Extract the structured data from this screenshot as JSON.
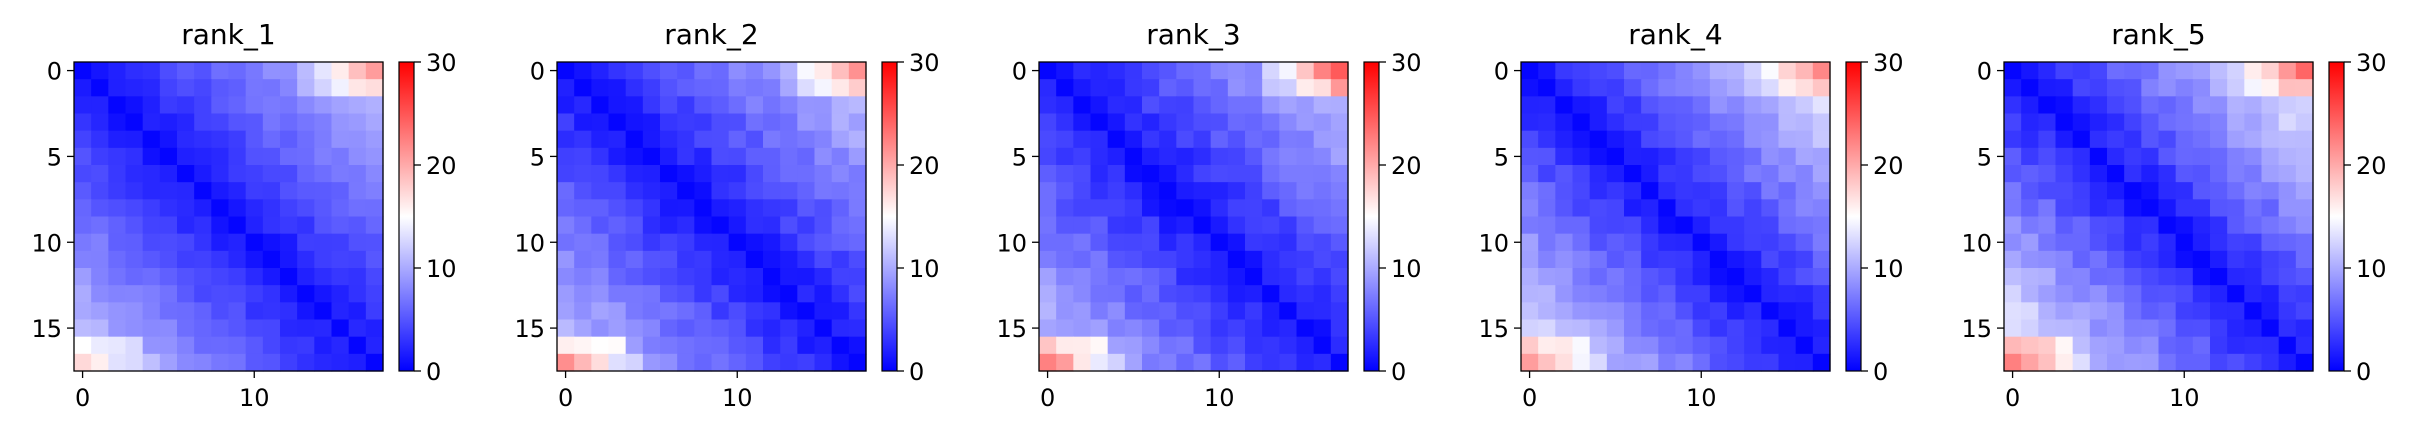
{
  "chart_data": [
    {
      "type": "heatmap",
      "title": "rank_1",
      "size": 18,
      "vmin": 0,
      "vmax": 30,
      "colormap": "bwr",
      "colormap_stops": [
        "#0000ff",
        "#ffffff",
        "#ff0000"
      ],
      "yticks": [
        0,
        5,
        10,
        15
      ],
      "xticks": [
        0,
        10
      ],
      "colorbar_ticks": [
        0,
        10,
        20,
        30
      ],
      "corner_far": 11,
      "top_far": 20,
      "bottom_far": 17,
      "diag_base": 1,
      "noise": 1.5,
      "seed": 11
    },
    {
      "type": "heatmap",
      "title": "rank_2",
      "size": 18,
      "vmin": 0,
      "vmax": 30,
      "colormap": "bwr",
      "colormap_stops": [
        "#0000ff",
        "#ffffff",
        "#ff0000"
      ],
      "yticks": [
        0,
        5,
        10,
        15
      ],
      "xticks": [
        0,
        10
      ],
      "colorbar_ticks": [
        0,
        10,
        20,
        30
      ],
      "corner_far": 11,
      "top_far": 21,
      "bottom_far": 22,
      "diag_base": 1,
      "noise": 2,
      "seed": 23
    },
    {
      "type": "heatmap",
      "title": "rank_3",
      "size": 18,
      "vmin": 0,
      "vmax": 30,
      "colormap": "bwr",
      "colormap_stops": [
        "#0000ff",
        "#ffffff",
        "#ff0000"
      ],
      "yticks": [
        0,
        5,
        10,
        15
      ],
      "xticks": [
        0,
        10
      ],
      "colorbar_ticks": [
        0,
        10,
        20,
        30
      ],
      "corner_far": 11,
      "top_far": 24,
      "bottom_far": 23,
      "diag_base": 1,
      "noise": 2.2,
      "seed": 37
    },
    {
      "type": "heatmap",
      "title": "rank_4",
      "size": 18,
      "vmin": 0,
      "vmax": 30,
      "colormap": "bwr",
      "colormap_stops": [
        "#0000ff",
        "#ffffff",
        "#ff0000"
      ],
      "yticks": [
        0,
        5,
        10,
        15
      ],
      "xticks": [
        0,
        10
      ],
      "colorbar_ticks": [
        0,
        10,
        20,
        30
      ],
      "corner_far": 13,
      "top_far": 21,
      "bottom_far": 21,
      "diag_base": 1,
      "noise": 2,
      "seed": 51
    },
    {
      "type": "heatmap",
      "title": "rank_5",
      "size": 18,
      "vmin": 0,
      "vmax": 30,
      "colormap": "bwr",
      "colormap_stops": [
        "#0000ff",
        "#ffffff",
        "#ff0000"
      ],
      "yticks": [
        0,
        5,
        10,
        15
      ],
      "xticks": [
        0,
        10
      ],
      "colorbar_ticks": [
        0,
        10,
        20,
        30
      ],
      "corner_far": 14,
      "top_far": 22,
      "bottom_far": 23,
      "diag_base": 1,
      "noise": 2.2,
      "seed": 67
    }
  ]
}
